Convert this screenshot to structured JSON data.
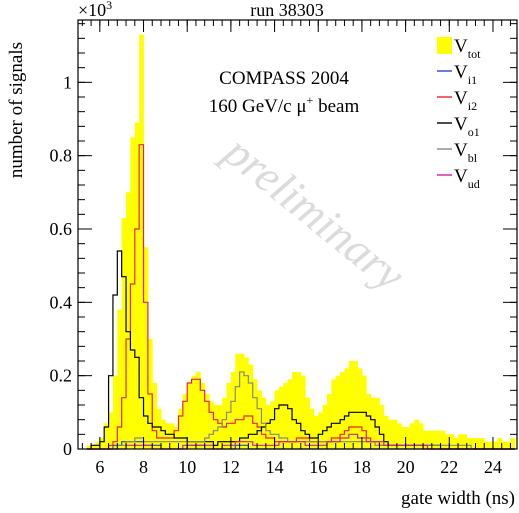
{
  "chart_data": {
    "type": "bar",
    "title": "run 38303",
    "xlabel": "gate width (ns)",
    "ylabel": "number of signals",
    "y_multiplier_label": "×10³",
    "xlim": [
      5.0,
      25.1
    ],
    "ylim": [
      0,
      1.17
    ],
    "x_ticks": [
      6,
      8,
      10,
      12,
      14,
      16,
      18,
      20,
      22,
      24
    ],
    "x_tick_labels": [
      "6",
      "8",
      "10",
      "12",
      "14",
      "16",
      "18",
      "20",
      "22",
      "24"
    ],
    "y_ticks": [
      0,
      0.2,
      0.4,
      0.6,
      0.8,
      1
    ],
    "y_tick_labels": [
      "0",
      "0.2",
      "0.4",
      "0.6",
      "0.8",
      "1"
    ],
    "annotation_lines": [
      "COMPASS 2004",
      "160 GeV/c  μ⁺ beam"
    ],
    "watermark": "preliminary",
    "bin_edges": [
      5.4,
      5.6,
      5.8,
      6.0,
      6.2,
      6.4,
      6.6,
      6.8,
      7.0,
      7.2,
      7.4,
      7.6,
      7.8,
      8.0,
      8.2,
      8.4,
      8.6,
      8.8,
      9.0,
      9.2,
      9.4,
      9.6,
      9.8,
      10.0,
      10.2,
      10.4,
      10.6,
      10.8,
      11.0,
      11.2,
      11.4,
      11.6,
      11.8,
      12.0,
      12.2,
      12.4,
      12.6,
      12.8,
      13.0,
      13.2,
      13.4,
      13.6,
      13.8,
      14.0,
      14.2,
      14.4,
      14.6,
      14.8,
      15.0,
      15.2,
      15.4,
      15.6,
      15.8,
      16.0,
      16.2,
      16.4,
      16.6,
      16.8,
      17.0,
      17.2,
      17.4,
      17.6,
      17.8,
      18.0,
      18.2,
      18.4,
      18.6,
      18.8,
      19.0,
      19.2,
      19.4,
      19.6,
      19.8,
      20.0,
      20.2,
      20.4,
      20.6,
      20.8,
      21.0,
      21.2,
      21.4,
      21.6,
      21.8,
      22.0,
      22.2,
      22.4,
      22.6,
      22.8,
      23.0,
      23.2,
      23.4,
      23.6,
      23.8,
      24.0,
      24.2,
      24.4,
      24.6,
      24.8,
      25.0
    ],
    "series": [
      {
        "name": "V",
        "subscript": "tot",
        "color": "#ffff00",
        "style": "fill",
        "values": [
          0.01,
          0.01,
          0.02,
          0.03,
          0.07,
          0.1,
          0.2,
          0.38,
          0.63,
          0.7,
          0.85,
          0.89,
          1.13,
          0.55,
          0.3,
          0.18,
          0.11,
          0.08,
          0.07,
          0.07,
          0.06,
          0.11,
          0.15,
          0.18,
          0.2,
          0.21,
          0.18,
          0.15,
          0.13,
          0.12,
          0.12,
          0.14,
          0.18,
          0.21,
          0.26,
          0.26,
          0.25,
          0.23,
          0.19,
          0.16,
          0.14,
          0.12,
          0.13,
          0.16,
          0.17,
          0.18,
          0.19,
          0.21,
          0.21,
          0.2,
          0.14,
          0.11,
          0.09,
          0.1,
          0.12,
          0.15,
          0.19,
          0.2,
          0.21,
          0.22,
          0.24,
          0.24,
          0.22,
          0.2,
          0.15,
          0.14,
          0.14,
          0.12,
          0.09,
          0.08,
          0.08,
          0.07,
          0.06,
          0.06,
          0.07,
          0.08,
          0.07,
          0.05,
          0.05,
          0.05,
          0.05,
          0.05,
          0.04,
          0.04,
          0.03,
          0.04,
          0.04,
          0.03,
          0.03,
          0.03,
          0.03,
          0.02,
          0.02,
          0.02,
          0.03,
          0.02,
          0.02,
          0.03
        ]
      },
      {
        "name": "V",
        "subscript": "i1",
        "color": "#3344cc",
        "style": "line",
        "values": [
          0.0,
          0.0,
          0.0,
          0.0,
          0.0,
          0.0,
          0.01,
          0.01,
          0.02,
          0.02,
          0.02,
          0.02,
          0.02,
          0.01,
          0.01,
          0.01,
          0.01,
          0.0,
          0.0,
          0.0,
          0.0,
          0.0,
          0.0,
          0.01,
          0.01,
          0.01,
          0.01,
          0.0,
          0.0,
          0.0,
          0.0,
          0.0,
          0.0,
          0.0,
          0.01,
          0.01,
          0.01,
          0.0,
          0.0,
          0.0,
          0.0,
          0.0,
          0.0,
          0.0,
          0.0,
          0.0,
          0.0,
          0.0,
          0.0,
          0.0,
          0.0,
          0.0,
          0.0,
          0.0,
          0.0,
          0.0,
          0.0,
          0.0,
          0.0,
          0.0,
          0.0,
          0.0,
          0.0,
          0.0,
          0.0,
          0.0,
          0.0,
          0.0,
          0.0,
          0.0,
          0.0,
          0.0,
          0.0,
          0.0,
          0.0,
          0.0,
          0.0,
          0.0,
          0.0,
          0.0,
          0.0,
          0.0,
          0.0,
          0.0,
          0.0,
          0.0,
          0.0,
          0.0,
          0.0,
          0.0,
          0.0,
          0.0,
          0.0,
          0.0,
          0.0,
          0.0,
          0.0,
          0.0
        ]
      },
      {
        "name": "V",
        "subscript": "i2",
        "color": "#ee2233",
        "style": "line",
        "values": [
          0.0,
          0.0,
          0.0,
          0.0,
          0.0,
          0.01,
          0.02,
          0.06,
          0.14,
          0.3,
          0.45,
          0.6,
          0.83,
          0.4,
          0.15,
          0.05,
          0.03,
          0.03,
          0.03,
          0.03,
          0.05,
          0.09,
          0.13,
          0.18,
          0.19,
          0.19,
          0.16,
          0.13,
          0.1,
          0.08,
          0.07,
          0.06,
          0.07,
          0.07,
          0.08,
          0.08,
          0.09,
          0.09,
          0.07,
          0.06,
          0.04,
          0.03,
          0.03,
          0.02,
          0.02,
          0.02,
          0.02,
          0.02,
          0.03,
          0.03,
          0.03,
          0.02,
          0.02,
          0.02,
          0.02,
          0.02,
          0.03,
          0.03,
          0.04,
          0.05,
          0.06,
          0.06,
          0.06,
          0.05,
          0.03,
          0.02,
          0.02,
          0.01,
          0.01,
          0.01,
          0.01,
          0.01,
          0.01,
          0.01,
          0.01,
          0.01,
          0.01,
          0.0,
          0.0,
          0.0,
          0.0,
          0.0,
          0.0,
          0.0,
          0.0,
          0.0,
          0.0,
          0.0,
          0.0,
          0.0,
          0.0,
          0.0,
          0.0,
          0.0,
          0.0,
          0.0,
          0.0,
          0.0
        ]
      },
      {
        "name": "V",
        "subscript": "o1",
        "color": "#000000",
        "style": "line",
        "values": [
          0.0,
          0.01,
          0.01,
          0.02,
          0.06,
          0.2,
          0.42,
          0.54,
          0.47,
          0.32,
          0.27,
          0.25,
          0.14,
          0.09,
          0.07,
          0.06,
          0.06,
          0.05,
          0.04,
          0.04,
          0.03,
          0.03,
          0.03,
          0.02,
          0.02,
          0.02,
          0.02,
          0.02,
          0.02,
          0.01,
          0.02,
          0.02,
          0.02,
          0.02,
          0.02,
          0.03,
          0.03,
          0.04,
          0.04,
          0.05,
          0.06,
          0.07,
          0.08,
          0.11,
          0.12,
          0.12,
          0.11,
          0.08,
          0.07,
          0.05,
          0.04,
          0.03,
          0.03,
          0.04,
          0.05,
          0.06,
          0.07,
          0.07,
          0.08,
          0.09,
          0.1,
          0.1,
          0.1,
          0.1,
          0.09,
          0.08,
          0.06,
          0.04,
          0.02,
          0.01,
          0.01,
          0.01,
          0.01,
          0.01,
          0.01,
          0.01,
          0.01,
          0.01,
          0.01,
          0.01,
          0.01,
          0.0,
          0.0,
          0.0,
          0.0,
          0.0,
          0.0,
          0.0,
          0.0,
          0.0,
          0.0,
          0.0,
          0.0,
          0.0,
          0.0,
          0.0,
          0.0,
          0.0
        ]
      },
      {
        "name": "V",
        "subscript": "bl",
        "color": "#888888",
        "style": "line",
        "values": [
          0.0,
          0.0,
          0.0,
          0.0,
          0.0,
          0.0,
          0.0,
          0.01,
          0.01,
          0.02,
          0.02,
          0.03,
          0.03,
          0.02,
          0.02,
          0.02,
          0.02,
          0.02,
          0.02,
          0.02,
          0.02,
          0.02,
          0.02,
          0.02,
          0.02,
          0.02,
          0.02,
          0.03,
          0.04,
          0.05,
          0.06,
          0.08,
          0.1,
          0.13,
          0.17,
          0.21,
          0.2,
          0.18,
          0.14,
          0.11,
          0.07,
          0.05,
          0.04,
          0.04,
          0.03,
          0.03,
          0.02,
          0.02,
          0.02,
          0.02,
          0.02,
          0.02,
          0.02,
          0.02,
          0.02,
          0.02,
          0.02,
          0.02,
          0.02,
          0.02,
          0.02,
          0.02,
          0.02,
          0.02,
          0.02,
          0.02,
          0.01,
          0.01,
          0.01,
          0.01,
          0.01,
          0.01,
          0.01,
          0.01,
          0.01,
          0.01,
          0.01,
          0.01,
          0.01,
          0.01,
          0.01,
          0.01,
          0.01,
          0.01,
          0.01,
          0.01,
          0.01,
          0.01,
          0.0,
          0.0,
          0.0,
          0.0,
          0.0,
          0.0,
          0.0,
          0.0,
          0.0,
          0.0
        ]
      },
      {
        "name": "V",
        "subscript": "ud",
        "color": "#cc22aa",
        "style": "line",
        "values": [
          0.0,
          0.0,
          0.0,
          0.0,
          0.0,
          0.0,
          0.0,
          0.0,
          0.0,
          0.01,
          0.01,
          0.01,
          0.01,
          0.01,
          0.01,
          0.0,
          0.0,
          0.0,
          0.0,
          0.0,
          0.0,
          0.0,
          0.01,
          0.01,
          0.01,
          0.01,
          0.01,
          0.01,
          0.01,
          0.0,
          0.0,
          0.01,
          0.01,
          0.01,
          0.02,
          0.02,
          0.02,
          0.02,
          0.01,
          0.01,
          0.01,
          0.01,
          0.01,
          0.01,
          0.02,
          0.02,
          0.02,
          0.02,
          0.02,
          0.02,
          0.01,
          0.01,
          0.01,
          0.01,
          0.01,
          0.02,
          0.02,
          0.02,
          0.03,
          0.03,
          0.04,
          0.04,
          0.03,
          0.03,
          0.02,
          0.02,
          0.02,
          0.02,
          0.01,
          0.01,
          0.01,
          0.01,
          0.01,
          0.01,
          0.01,
          0.01,
          0.01,
          0.01,
          0.0,
          0.0,
          0.0,
          0.0,
          0.0,
          0.0,
          0.0,
          0.0,
          0.0,
          0.0,
          0.0,
          0.0,
          0.0,
          0.0,
          0.0,
          0.0,
          0.0,
          0.0,
          0.0,
          0.0
        ]
      }
    ],
    "legend_placement": "top-right",
    "grid": false
  }
}
